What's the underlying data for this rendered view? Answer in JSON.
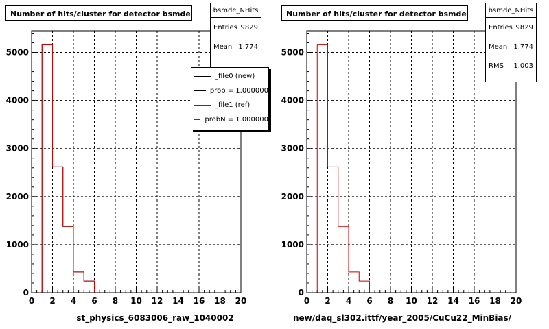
{
  "chart_data": [
    {
      "type": "bar",
      "style": "step-histogram",
      "title": "Number of hits/cluster for detector bsmde",
      "xlabel": "st_physics_6083006_raw_1040002",
      "ylabel": "",
      "xlim": [
        0,
        20
      ],
      "ylim": [
        0,
        5450
      ],
      "grid": true,
      "x_ticks": [
        0,
        2,
        4,
        6,
        8,
        10,
        12,
        14,
        16,
        18,
        20
      ],
      "y_ticks": [
        0,
        1000,
        2000,
        3000,
        4000,
        5000
      ],
      "bin_width": 1,
      "bin_edges": [
        0,
        1,
        2,
        3,
        4,
        5,
        6,
        7,
        8,
        9,
        10,
        11,
        12,
        13,
        14,
        15,
        16,
        17,
        18,
        19,
        20
      ],
      "series": [
        {
          "name": "_file0 (new)",
          "color": "#000000",
          "values": [
            0,
            5170,
            2620,
            1380,
            430,
            240,
            0,
            0,
            0,
            0,
            0,
            0,
            0,
            0,
            0,
            0,
            0,
            0,
            0,
            0
          ]
        },
        {
          "name": "_file1 (ref)",
          "color": "#cc0000",
          "values": [
            0,
            5170,
            2620,
            1380,
            430,
            240,
            0,
            0,
            0,
            0,
            0,
            0,
            0,
            0,
            0,
            0,
            0,
            0,
            0,
            0
          ]
        }
      ],
      "stats": {
        "name": "bsmde_NHits",
        "entries_label": "Entries",
        "entries": "9829",
        "mean_label": "Mean",
        "mean": "1.774"
      },
      "legend": {
        "placement": "top-right",
        "entries": [
          {
            "label": "_file0 (new)",
            "color": "#000000"
          },
          {
            "label": "prob = 1.000000",
            "color": "#000000"
          },
          {
            "label": "_file1 (ref)",
            "color": "#cc0000"
          },
          {
            "label": "probN = 1.000000",
            "color": "#cc0000"
          }
        ]
      }
    },
    {
      "type": "bar",
      "style": "step-histogram",
      "title": "Number of hits/cluster for detector bsmde",
      "xlabel": "new/daq_sl302.ittf/year_2005/CuCu22_MinBias/",
      "ylabel": "",
      "xlim": [
        0,
        20
      ],
      "ylim": [
        0,
        5450
      ],
      "grid": true,
      "x_ticks": [
        0,
        2,
        4,
        6,
        8,
        10,
        12,
        14,
        16,
        18,
        20
      ],
      "y_ticks": [
        0,
        1000,
        2000,
        3000,
        4000,
        5000
      ],
      "bin_width": 1,
      "bin_edges": [
        0,
        1,
        2,
        3,
        4,
        5,
        6,
        7,
        8,
        9,
        10,
        11,
        12,
        13,
        14,
        15,
        16,
        17,
        18,
        19,
        20
      ],
      "series": [
        {
          "name": "bsmde_NHits",
          "color": "#cc0000",
          "values": [
            0,
            5170,
            2620,
            1380,
            430,
            240,
            0,
            0,
            0,
            0,
            0,
            0,
            0,
            0,
            0,
            0,
            0,
            0,
            0,
            0
          ]
        }
      ],
      "stats": {
        "name": "bsmde_NHits",
        "entries_label": "Entries",
        "entries": "9829",
        "mean_label": "Mean",
        "mean": "1.774",
        "rms_label": "RMS",
        "rms": "1.003"
      }
    }
  ]
}
